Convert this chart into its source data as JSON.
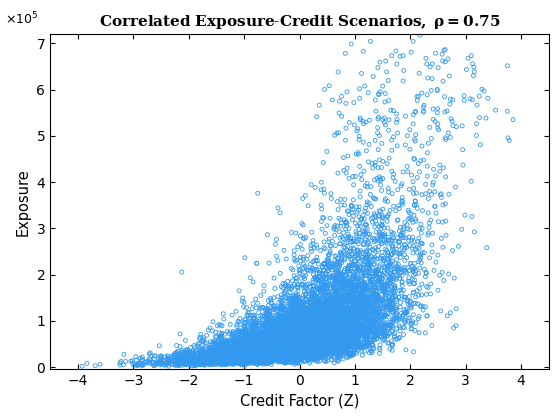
{
  "title": "Correlated Exposure-Credit Scenarios, ρ = 0.75",
  "xlabel": "Credit Factor (Z)",
  "ylabel": "Exposure",
  "xlim": [
    -4.5,
    4.5
  ],
  "ylim": [
    -5000,
    720000
  ],
  "rho": 0.75,
  "n_samples": 10000,
  "seed": 42,
  "marker_color": "#3399EE",
  "marker_size": 8,
  "marker_linewidth": 0.6,
  "title_fontsize": 11,
  "label_fontsize": 10.5,
  "mu_ln": 11.0,
  "sigma_ln": 0.9
}
